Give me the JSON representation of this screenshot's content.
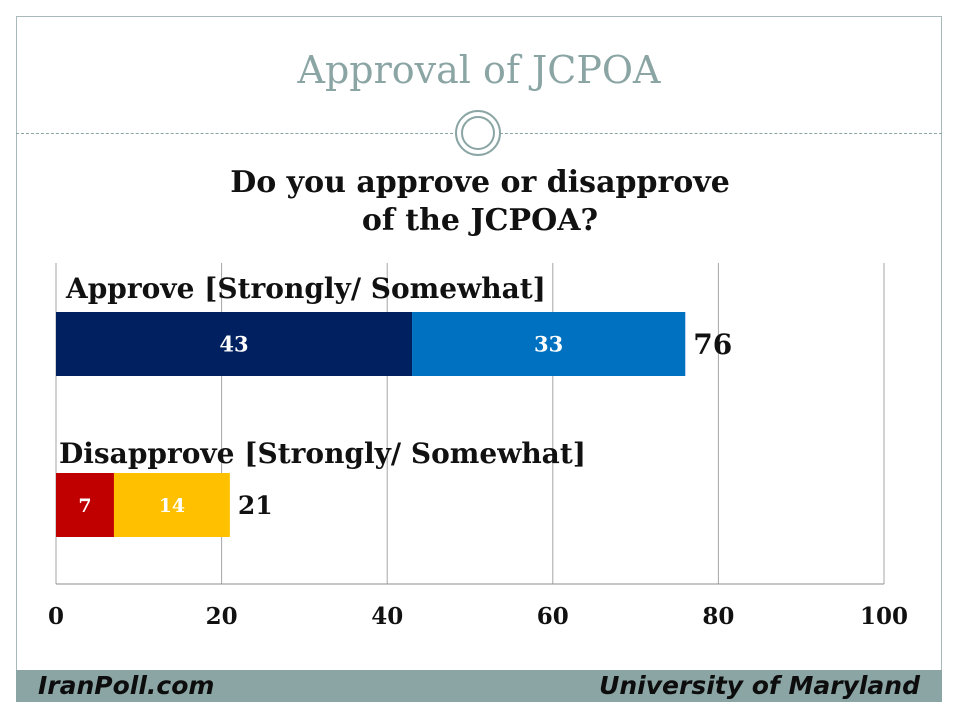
{
  "slide": {
    "title": "Approval of JCPOA",
    "footer_left": "IranPoll.com",
    "footer_right": "University of Maryland"
  },
  "colors": {
    "accent": "#8aa5a4",
    "approve_strong": "#002060",
    "approve_somewhat": "#0070c0",
    "disapprove_strong": "#c00000",
    "disapprove_somewhat": "#ffc000"
  },
  "chart_data": {
    "type": "bar",
    "orientation": "horizontal",
    "stacked": true,
    "title_lines": [
      "Do you approve or disapprove",
      "of the JCPOA?"
    ],
    "categories": [
      "Approve [Strongly/ Somewhat]",
      "Disapprove [Strongly/ Somewhat]"
    ],
    "series": [
      {
        "values": [
          43,
          7
        ],
        "colors": [
          "#002060",
          "#c00000"
        ]
      },
      {
        "values": [
          33,
          14
        ],
        "colors": [
          "#0070c0",
          "#ffc000"
        ]
      }
    ],
    "totals": [
      "76",
      "21"
    ],
    "xlim": [
      0,
      100
    ],
    "xticks": [
      0,
      20,
      40,
      60,
      80,
      100
    ],
    "grid": true,
    "xlabel": "",
    "ylabel": ""
  }
}
